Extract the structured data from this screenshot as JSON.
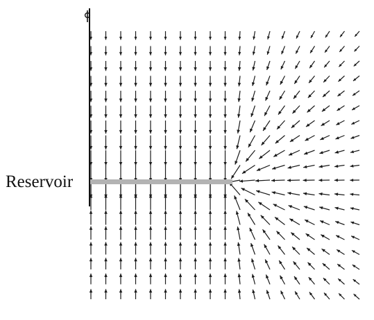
{
  "figure": {
    "label": "Reservoir",
    "symmetry_marker": "centerline-symbol",
    "colors": {
      "arrow": "#1a1a1a",
      "reservoir_bar": "#b3b3b3",
      "axis": "#111111",
      "text": "#111111",
      "background": "#ffffff"
    }
  }
}
